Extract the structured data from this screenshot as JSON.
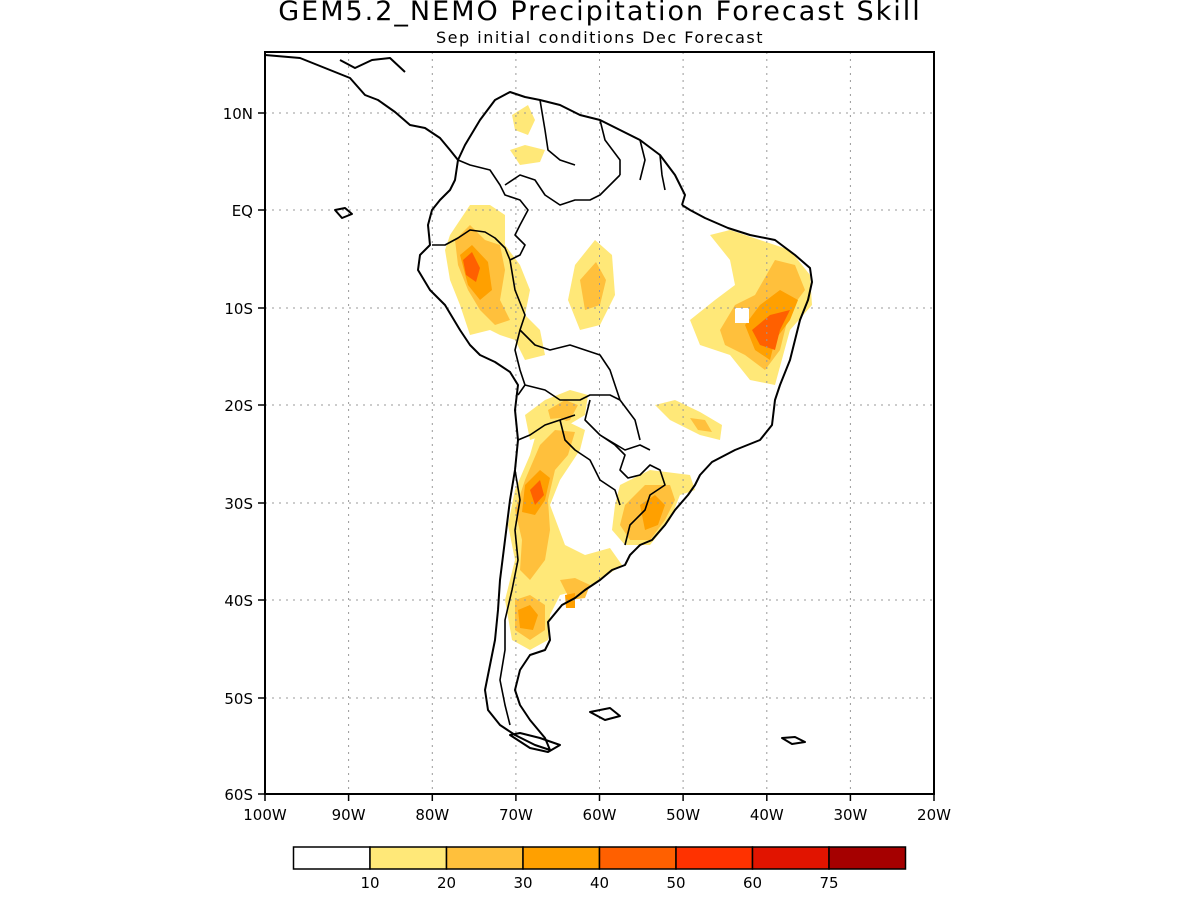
{
  "title": "GEM5.2_NEMO Precipitation Forecast Skill",
  "subtitle": "Sep initial conditions  Dec Forecast",
  "map": {
    "lat_labels": [
      "10N",
      "EQ",
      "10S",
      "20S",
      "30S",
      "40S",
      "50S",
      "60S"
    ],
    "lon_labels": [
      "100W",
      "90W",
      "80W",
      "70W",
      "60W",
      "50W",
      "40W",
      "30W",
      "20W"
    ],
    "lon_range": [
      -100,
      -20
    ],
    "lat_range": [
      -60,
      16
    ],
    "grid": "dotted"
  },
  "colorbar": {
    "colors": [
      "#ffffff",
      "#ffe878",
      "#ffc03c",
      "#ffa000",
      "#ff6000",
      "#ff3200",
      "#e11400",
      "#a50000"
    ],
    "labels": [
      "10",
      "20",
      "30",
      "40",
      "50",
      "60",
      "75"
    ]
  }
}
